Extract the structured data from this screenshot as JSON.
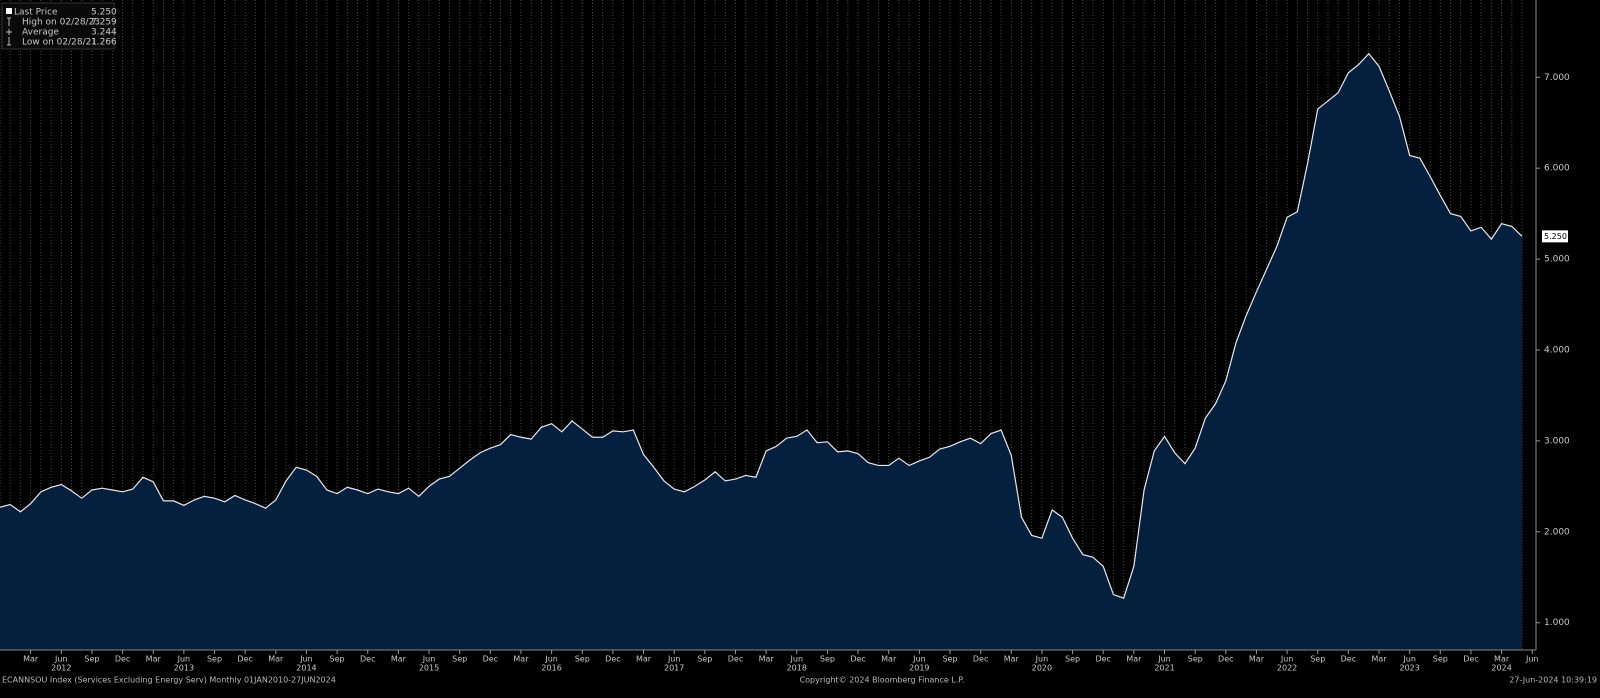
{
  "chart_data": {
    "type": "area",
    "stats": [
      {
        "name": "Last Price",
        "value": 5.25,
        "label": "5.250"
      },
      {
        "name": "High on 02/28/23",
        "value": 7.259,
        "label": "7.259"
      },
      {
        "name": "Average",
        "value": 3.244,
        "label": "3.244"
      },
      {
        "name": "Low on 02/28/21",
        "value": 1.266,
        "label": "1.266"
      }
    ],
    "x": [
      "2011-12",
      "2012-01",
      "2012-02",
      "2012-03",
      "2012-04",
      "2012-05",
      "2012-06",
      "2012-07",
      "2012-08",
      "2012-09",
      "2012-10",
      "2012-11",
      "2012-12",
      "2013-01",
      "2013-02",
      "2013-03",
      "2013-04",
      "2013-05",
      "2013-06",
      "2013-07",
      "2013-08",
      "2013-09",
      "2013-10",
      "2013-11",
      "2013-12",
      "2014-01",
      "2014-02",
      "2014-03",
      "2014-04",
      "2014-05",
      "2014-06",
      "2014-07",
      "2014-08",
      "2014-09",
      "2014-10",
      "2014-11",
      "2014-12",
      "2015-01",
      "2015-02",
      "2015-03",
      "2015-04",
      "2015-05",
      "2015-06",
      "2015-07",
      "2015-08",
      "2015-09",
      "2015-10",
      "2015-11",
      "2015-12",
      "2016-01",
      "2016-02",
      "2016-03",
      "2016-04",
      "2016-05",
      "2016-06",
      "2016-07",
      "2016-08",
      "2016-09",
      "2016-10",
      "2016-11",
      "2016-12",
      "2017-01",
      "2017-02",
      "2017-03",
      "2017-04",
      "2017-05",
      "2017-06",
      "2017-07",
      "2017-08",
      "2017-09",
      "2017-10",
      "2017-11",
      "2017-12",
      "2018-01",
      "2018-02",
      "2018-03",
      "2018-04",
      "2018-05",
      "2018-06",
      "2018-07",
      "2018-08",
      "2018-09",
      "2018-10",
      "2018-11",
      "2018-12",
      "2019-01",
      "2019-02",
      "2019-03",
      "2019-04",
      "2019-05",
      "2019-06",
      "2019-07",
      "2019-08",
      "2019-09",
      "2019-10",
      "2019-11",
      "2019-12",
      "2020-01",
      "2020-02",
      "2020-03",
      "2020-04",
      "2020-05",
      "2020-06",
      "2020-07",
      "2020-08",
      "2020-09",
      "2020-10",
      "2020-11",
      "2020-12",
      "2021-01",
      "2021-02",
      "2021-03",
      "2021-04",
      "2021-05",
      "2021-06",
      "2021-07",
      "2021-08",
      "2021-09",
      "2021-10",
      "2021-11",
      "2021-12",
      "2022-01",
      "2022-02",
      "2022-03",
      "2022-04",
      "2022-05",
      "2022-06",
      "2022-07",
      "2022-08",
      "2022-09",
      "2022-10",
      "2022-11",
      "2022-12",
      "2023-01",
      "2023-02",
      "2023-03",
      "2023-04",
      "2023-05",
      "2023-06",
      "2023-07",
      "2023-08",
      "2023-09",
      "2023-10",
      "2023-11",
      "2023-12",
      "2024-01",
      "2024-02",
      "2024-03",
      "2024-04",
      "2024-05"
    ],
    "series": [
      {
        "name": "Last Price",
        "color": "#e8e8e8",
        "fill": "#05203f",
        "values": [
          2.27,
          2.3,
          2.22,
          2.31,
          2.44,
          2.49,
          2.52,
          2.45,
          2.37,
          2.46,
          2.48,
          2.46,
          2.44,
          2.47,
          2.6,
          2.55,
          2.34,
          2.34,
          2.29,
          2.35,
          2.39,
          2.37,
          2.33,
          2.4,
          2.35,
          2.31,
          2.26,
          2.35,
          2.56,
          2.71,
          2.68,
          2.61,
          2.46,
          2.42,
          2.49,
          2.46,
          2.42,
          2.47,
          2.44,
          2.42,
          2.48,
          2.39,
          2.5,
          2.58,
          2.61,
          2.7,
          2.79,
          2.87,
          2.92,
          2.96,
          3.07,
          3.04,
          3.02,
          3.15,
          3.19,
          3.1,
          3.22,
          3.13,
          3.04,
          3.04,
          3.11,
          3.1,
          3.12,
          2.85,
          2.71,
          2.56,
          2.47,
          2.44,
          2.5,
          2.57,
          2.66,
          2.56,
          2.58,
          2.62,
          2.6,
          2.89,
          2.94,
          3.03,
          3.05,
          3.12,
          2.98,
          2.99,
          2.88,
          2.89,
          2.86,
          2.76,
          2.73,
          2.73,
          2.81,
          2.73,
          2.78,
          2.82,
          2.91,
          2.94,
          2.99,
          3.03,
          2.97,
          3.08,
          3.12,
          2.84,
          2.16,
          1.96,
          1.93,
          2.24,
          2.16,
          1.93,
          1.75,
          1.72,
          1.62,
          1.31,
          1.27,
          1.62,
          2.46,
          2.89,
          3.05,
          2.87,
          2.75,
          2.92,
          3.25,
          3.41,
          3.66,
          4.08,
          4.38,
          4.64,
          4.89,
          5.14,
          5.46,
          5.52,
          6.05,
          6.65,
          6.74,
          6.83,
          7.05,
          7.14,
          7.26,
          7.12,
          6.85,
          6.57,
          6.14,
          6.11,
          5.91,
          5.7,
          5.5,
          5.47,
          5.31,
          5.35,
          5.22,
          5.39,
          5.36,
          5.25
        ]
      }
    ],
    "ylim": [
      0.7,
      7.85
    ],
    "yticks": [
      {
        "value": 1,
        "label": "1.000"
      },
      {
        "value": 2,
        "label": "2.000"
      },
      {
        "value": 3,
        "label": "3.000"
      },
      {
        "value": 4,
        "label": "4.000"
      },
      {
        "value": 5,
        "label": "5.000"
      },
      {
        "value": 6,
        "label": "6.000"
      },
      {
        "value": 7,
        "label": "7.000"
      }
    ],
    "xticks": [
      {
        "value": "2012-03",
        "label": "Mar"
      },
      {
        "value": "2012-06",
        "label": "Jun"
      },
      {
        "value": "2012-09",
        "label": "Sep"
      },
      {
        "value": "2012-12",
        "label": "Dec"
      },
      {
        "value": "2013-03",
        "label": "Mar"
      },
      {
        "value": "2013-06",
        "label": "Jun"
      },
      {
        "value": "2013-09",
        "label": "Sep"
      },
      {
        "value": "2013-12",
        "label": "Dec"
      },
      {
        "value": "2014-03",
        "label": "Mar"
      },
      {
        "value": "2014-06",
        "label": "Jun"
      },
      {
        "value": "2014-09",
        "label": "Sep"
      },
      {
        "value": "2014-12",
        "label": "Dec"
      },
      {
        "value": "2015-03",
        "label": "Mar"
      },
      {
        "value": "2015-06",
        "label": "Jun"
      },
      {
        "value": "2015-09",
        "label": "Sep"
      },
      {
        "value": "2015-12",
        "label": "Dec"
      },
      {
        "value": "2016-03",
        "label": "Mar"
      },
      {
        "value": "2016-06",
        "label": "Jun"
      },
      {
        "value": "2016-09",
        "label": "Sep"
      },
      {
        "value": "2016-12",
        "label": "Dec"
      },
      {
        "value": "2017-03",
        "label": "Mar"
      },
      {
        "value": "2017-06",
        "label": "Jun"
      },
      {
        "value": "2017-09",
        "label": "Sep"
      },
      {
        "value": "2017-12",
        "label": "Dec"
      },
      {
        "value": "2018-03",
        "label": "Mar"
      },
      {
        "value": "2018-06",
        "label": "Jun"
      },
      {
        "value": "2018-09",
        "label": "Sep"
      },
      {
        "value": "2018-12",
        "label": "Dec"
      },
      {
        "value": "2019-03",
        "label": "Mar"
      },
      {
        "value": "2019-06",
        "label": "Jun"
      },
      {
        "value": "2019-09",
        "label": "Sep"
      },
      {
        "value": "2019-12",
        "label": "Dec"
      },
      {
        "value": "2020-03",
        "label": "Mar"
      },
      {
        "value": "2020-06",
        "label": "Jun"
      },
      {
        "value": "2020-09",
        "label": "Sep"
      },
      {
        "value": "2020-12",
        "label": "Dec"
      },
      {
        "value": "2021-03",
        "label": "Mar"
      },
      {
        "value": "2021-06",
        "label": "Jun"
      },
      {
        "value": "2021-09",
        "label": "Sep"
      },
      {
        "value": "2021-12",
        "label": "Dec"
      },
      {
        "value": "2022-03",
        "label": "Mar"
      },
      {
        "value": "2022-06",
        "label": "Jun"
      },
      {
        "value": "2022-09",
        "label": "Sep"
      },
      {
        "value": "2022-12",
        "label": "Dec"
      },
      {
        "value": "2023-03",
        "label": "Mar"
      },
      {
        "value": "2023-06",
        "label": "Jun"
      },
      {
        "value": "2023-09",
        "label": "Sep"
      },
      {
        "value": "2023-12",
        "label": "Dec"
      },
      {
        "value": "2024-03",
        "label": "Mar"
      },
      {
        "value": "2024-06",
        "label": "Jun"
      }
    ],
    "year_labels": [
      {
        "value": "2012-06",
        "label": "2012"
      },
      {
        "value": "2013-06",
        "label": "2013"
      },
      {
        "value": "2014-06",
        "label": "2014"
      },
      {
        "value": "2015-06",
        "label": "2015"
      },
      {
        "value": "2016-06",
        "label": "2016"
      },
      {
        "value": "2017-06",
        "label": "2017"
      },
      {
        "value": "2018-06",
        "label": "2018"
      },
      {
        "value": "2019-06",
        "label": "2019"
      },
      {
        "value": "2020-06",
        "label": "2020"
      },
      {
        "value": "2021-06",
        "label": "2021"
      },
      {
        "value": "2022-06",
        "label": "2022"
      },
      {
        "value": "2023-06",
        "label": "2023"
      },
      {
        "value": "2024-03",
        "label": "2024"
      }
    ],
    "grid": true
  },
  "footer": {
    "left": "ECANNSOU Index (Services Excluding Energy Serv)  Monthly 01JAN2010-27JUN2024",
    "center": "Copyright© 2024 Bloomberg Finance L.P.",
    "right": "27-Jun-2024 10:39:19"
  }
}
